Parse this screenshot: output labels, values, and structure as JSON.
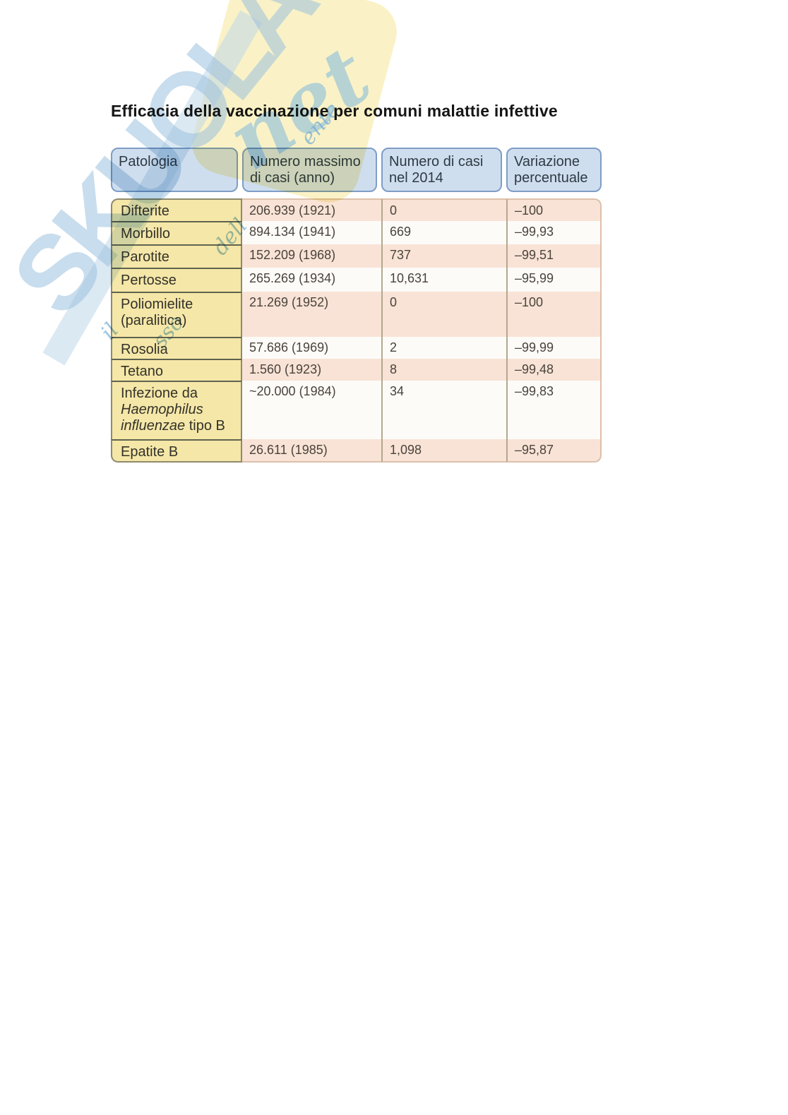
{
  "title": "Efficacia della vaccinazione per comuni malattie infettive",
  "watermark": {
    "brand": "SKUOLA",
    "brand_suffix": "net",
    "tagline_fragments": [
      "il",
      "sso",
      "dell",
      "ente"
    ]
  },
  "palette": {
    "header_fill": "#cfdeee",
    "header_border": "#7e9dc6",
    "pathology_fill": "#f5e7a8",
    "stripe_pink": "#f8e3d6",
    "stripe_white": "#fdfbf8",
    "watermark_blue": "#9cc1de",
    "watermark_yellow": "#faf2c6"
  },
  "table": {
    "headers": [
      "Patologia",
      "Numero massimo di casi (anno)",
      "Numero di casi nel 2014",
      "Variazione percentuale"
    ],
    "rows": [
      {
        "patologia": "Difterite",
        "numero_massimo": "206.939 (1921)",
        "casi_2014": "0",
        "variazione": "–100"
      },
      {
        "patologia": "Morbillo",
        "numero_massimo": "894.134 (1941)",
        "casi_2014": "669",
        "variazione": "–99,93"
      },
      {
        "patologia": "Parotite",
        "numero_massimo": "152.209 (1968)",
        "casi_2014": "737",
        "variazione": "–99,51"
      },
      {
        "patologia": "Pertosse",
        "numero_massimo": "265.269 (1934)",
        "casi_2014": "10,631",
        "variazione": "–95,99"
      },
      {
        "patologia": "Poliomielite (paralitica)",
        "numero_massimo": "21.269 (1952)",
        "casi_2014": "0",
        "variazione": "–100"
      },
      {
        "patologia": "Rosolia",
        "numero_massimo": "57.686 (1969)",
        "casi_2014": "2",
        "variazione": "–99,99"
      },
      {
        "patologia": "Tetano",
        "numero_massimo": "1.560 (1923)",
        "casi_2014": "8",
        "variazione": "–99,48"
      },
      {
        "patologia_prefix": "Infezione da ",
        "patologia_italic": "Haemophilus influenzae",
        "patologia_suffix": " tipo B",
        "numero_massimo": "~20.000 (1984)",
        "casi_2014": "34",
        "variazione": "–99,83"
      },
      {
        "patologia": "Epatite B",
        "numero_massimo": "26.611 (1985)",
        "casi_2014": "1,098",
        "variazione": "–95,87"
      }
    ]
  }
}
